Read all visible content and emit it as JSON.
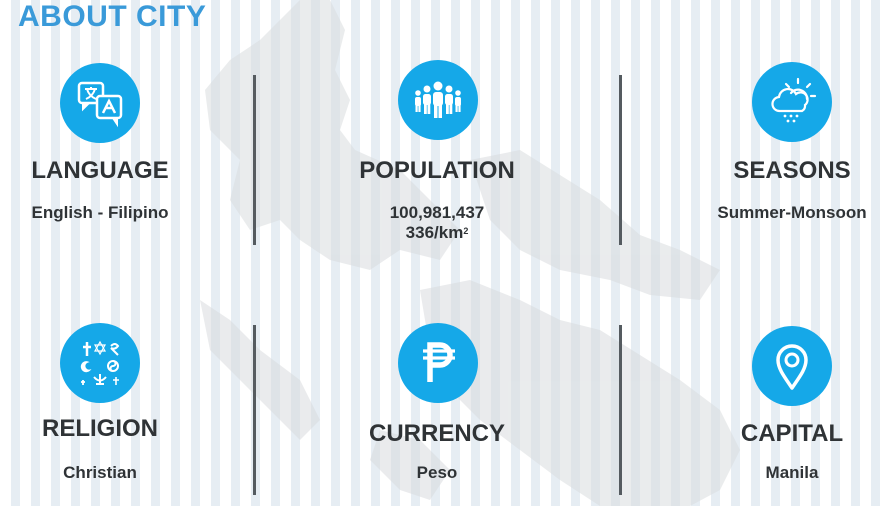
{
  "page": {
    "title": "ABOUT CITY"
  },
  "colors": {
    "accent": "#15a8e8",
    "title": "#3a9ad9",
    "text": "#2f3336",
    "divider": "#555b60"
  },
  "cards": {
    "language": {
      "heading": "LANGUAGE",
      "value": "English - Filipino",
      "icon": "translate-icon"
    },
    "population": {
      "heading": "POPULATION",
      "value": "100,981,437",
      "density_value": "336/km",
      "density_exponent": "2",
      "icon": "people-group-icon"
    },
    "seasons": {
      "heading": "SEASONS",
      "value": "Summer-Monsoon",
      "icon": "sun-cloud-rain-icon"
    },
    "religion": {
      "heading": "RELIGION",
      "value": "Christian",
      "icon": "religious-symbols-icon"
    },
    "currency": {
      "heading": "CURRENCY",
      "value": "Peso",
      "icon": "peso-sign-icon"
    },
    "capital": {
      "heading": "CAPITAL",
      "value": "Manila",
      "icon": "location-pin-icon"
    }
  }
}
